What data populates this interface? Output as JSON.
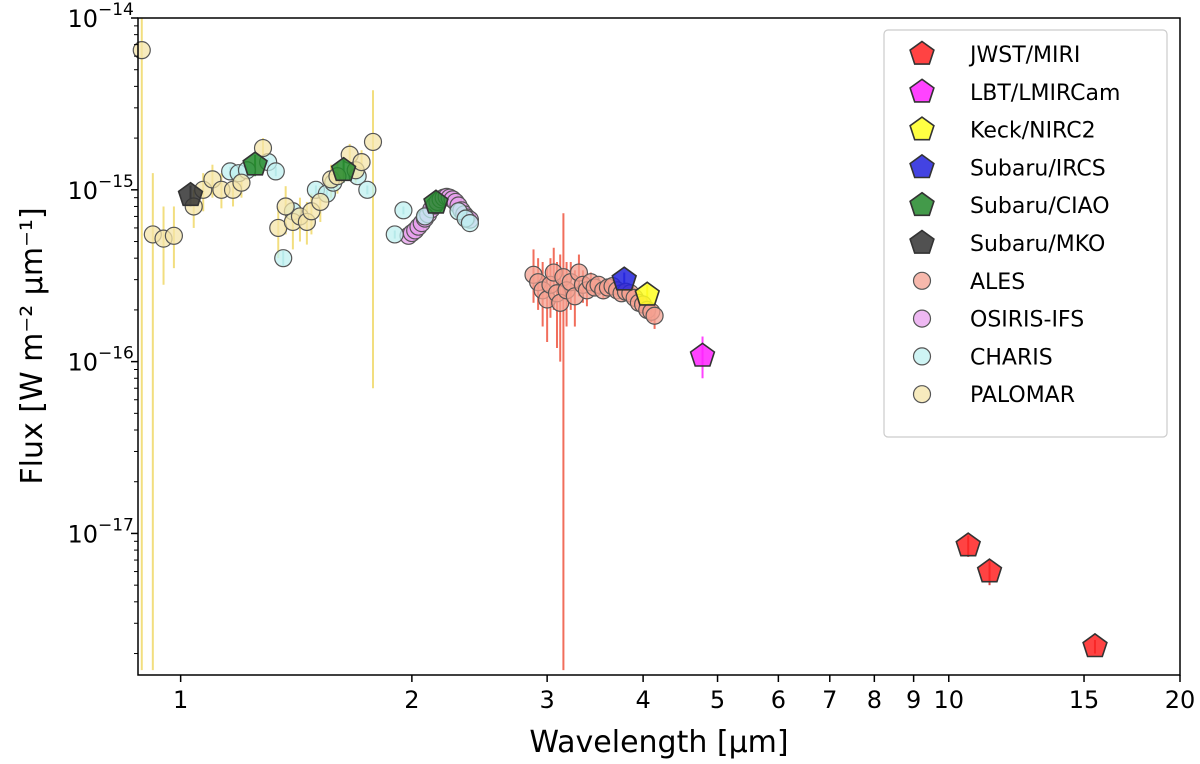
{
  "chart_data": {
    "type": "scatter",
    "xscale": "log",
    "yscale": "log",
    "xlim": [
      0.88,
      20
    ],
    "ylim": [
      1.5e-18,
      1e-14
    ],
    "xlabel": "Wavelength [μm]",
    "ylabel": "Flux [W m⁻² μm⁻¹]",
    "xticks": [
      {
        "value": 1,
        "label": "1"
      },
      {
        "value": 2,
        "label": "2"
      },
      {
        "value": 3,
        "label": "3"
      },
      {
        "value": 4,
        "label": "4"
      },
      {
        "value": 5,
        "label": "5"
      },
      {
        "value": 6,
        "label": "6"
      },
      {
        "value": 7,
        "label": "7"
      },
      {
        "value": 8,
        "label": "8"
      },
      {
        "value": 9,
        "label": "9"
      },
      {
        "value": 10,
        "label": "10"
      },
      {
        "value": 15,
        "label": "15"
      },
      {
        "value": 20,
        "label": "20"
      }
    ],
    "yticks": [
      {
        "value": 1e-17,
        "base": "10",
        "exp": "−17"
      },
      {
        "value": 1e-16,
        "base": "10",
        "exp": "−16"
      },
      {
        "value": 1e-15,
        "base": "10",
        "exp": "−15"
      },
      {
        "value": 1e-14,
        "base": "10",
        "exp": "−14"
      }
    ],
    "legend_position": "top-right",
    "series": [
      {
        "name": "JWST/MIRI",
        "marker": "pentagon",
        "color": "#ff2222",
        "ecolor": "#cc2222",
        "points": [
          [
            10.6,
            8.5e-18,
            7.3e-18,
            9.7e-18
          ],
          [
            11.3,
            6e-18,
            5e-18,
            7e-18
          ],
          [
            15.5,
            2.2e-18,
            2e-18,
            2.4e-18
          ]
        ]
      },
      {
        "name": "LBT/LMIRCam",
        "marker": "pentagon",
        "color": "#ff22ff",
        "ecolor": "#ff22ff",
        "points": [
          [
            4.78,
            1.08e-16,
            8e-17,
            1.4e-16
          ]
        ]
      },
      {
        "name": "Keck/NIRC2",
        "marker": "pentagon",
        "color": "#ffff22",
        "ecolor": "#e8d000",
        "points": [
          [
            4.05,
            2.45e-16,
            2.1e-16,
            2.8e-16
          ]
        ]
      },
      {
        "name": "Subaru/IRCS",
        "marker": "pentagon",
        "color": "#2222dd",
        "ecolor": "#2222dd",
        "points": [
          [
            3.78,
            3e-16,
            2.7e-16,
            3.3e-16
          ]
        ]
      },
      {
        "name": "Subaru/CIAO",
        "marker": "pentagon",
        "color": "#22882a",
        "ecolor": "#22882a",
        "points": [
          [
            1.25,
            1.4e-15,
            1.2e-15,
            1.6e-15
          ],
          [
            1.63,
            1.3e-15,
            1.1e-15,
            1.5e-15
          ],
          [
            2.15,
            8.4e-16,
            7.2e-16,
            9.6e-16
          ]
        ]
      },
      {
        "name": "Subaru/MKO",
        "marker": "pentagon",
        "color": "#333333",
        "ecolor": "#333333",
        "points": [
          [
            1.03,
            9.3e-16,
            8e-16,
            1.06e-15
          ]
        ]
      },
      {
        "name": "ALES",
        "marker": "circle",
        "color": "#f4a090",
        "ecolor": "#ee5540",
        "points": [
          [
            2.88,
            3.2e-16,
            2.2e-16,
            4.5e-16
          ],
          [
            2.92,
            2.9e-16,
            2e-16,
            4e-16
          ],
          [
            2.96,
            2.6e-16,
            1.6e-16,
            3.8e-16
          ],
          [
            3.0,
            2.3e-16,
            1.3e-16,
            3.5e-16
          ],
          [
            3.03,
            2.8e-16,
            1.8e-16,
            4e-16
          ],
          [
            3.06,
            3.3e-16,
            2e-16,
            4.6e-16
          ],
          [
            3.09,
            2.5e-16,
            1.2e-16,
            3.8e-16
          ],
          [
            3.12,
            2.2e-16,
            1e-16,
            4.2e-16
          ],
          [
            3.15,
            3.1e-16,
            1.6e-18,
            7.3e-16
          ],
          [
            3.18,
            2.6e-16,
            1.6e-16,
            3.8e-16
          ],
          [
            3.22,
            2.9e-16,
            2e-16,
            3.8e-16
          ],
          [
            3.26,
            2.4e-16,
            1.6e-16,
            3.4e-16
          ],
          [
            3.3,
            3.3e-16,
            2.4e-16,
            4.2e-16
          ],
          [
            3.34,
            2.8e-16,
            2.2e-16,
            3.4e-16
          ],
          [
            3.38,
            2.6e-16,
            2.1e-16,
            3.1e-16
          ],
          [
            3.42,
            2.9e-16,
            2.5e-16,
            3.3e-16
          ],
          [
            3.46,
            2.7e-16,
            2.4e-16,
            3e-16
          ],
          [
            3.5,
            2.8e-16,
            2.5e-16,
            3.1e-16
          ],
          [
            3.55,
            2.6e-16,
            2.3e-16,
            2.9e-16
          ],
          [
            3.6,
            2.7e-16,
            2.4e-16,
            3e-16
          ],
          [
            3.65,
            2.75e-16,
            2.5e-16,
            3e-16
          ],
          [
            3.7,
            2.6e-16,
            2.4e-16,
            2.8e-16
          ],
          [
            3.75,
            2.5e-16,
            2.3e-16,
            2.7e-16
          ],
          [
            3.8,
            2.55e-16,
            2.3e-16,
            2.8e-16
          ],
          [
            3.85,
            2.5e-16,
            2.3e-16,
            2.7e-16
          ],
          [
            3.9,
            2.35e-16,
            2.1e-16,
            2.6e-16
          ],
          [
            3.95,
            2.2e-16,
            2e-16,
            2.4e-16
          ],
          [
            4.0,
            2.15e-16,
            1.95e-16,
            2.35e-16
          ],
          [
            4.05,
            2e-16,
            1.8e-16,
            2.2e-16
          ],
          [
            4.1,
            1.95e-16,
            1.7e-16,
            2.2e-16
          ],
          [
            4.14,
            1.85e-16,
            1.55e-16,
            2.15e-16
          ]
        ]
      },
      {
        "name": "OSIRIS-IFS",
        "marker": "circle",
        "color": "#e8a0ee",
        "ecolor": "#cc66dd",
        "points": [
          [
            1.98,
            5.4e-16,
            5e-16,
            5.8e-16
          ],
          [
            2.0,
            5.6e-16,
            5.2e-16,
            6e-16
          ],
          [
            2.02,
            5.8e-16,
            5.4e-16,
            6.2e-16
          ],
          [
            2.04,
            6.1e-16,
            5.7e-16,
            6.5e-16
          ],
          [
            2.06,
            6.4e-16,
            6e-16,
            6.8e-16
          ],
          [
            2.08,
            6.8e-16,
            6.4e-16,
            7.2e-16
          ],
          [
            2.1,
            7.2e-16,
            6.8e-16,
            7.6e-16
          ],
          [
            2.12,
            7.7e-16,
            7.3e-16,
            8.1e-16
          ],
          [
            2.14,
            8.1e-16,
            7.7e-16,
            8.5e-16
          ],
          [
            2.16,
            8.5e-16,
            8.1e-16,
            8.9e-16
          ],
          [
            2.18,
            8.8e-16,
            8.4e-16,
            9.2e-16
          ],
          [
            2.2,
            9e-16,
            8.6e-16,
            9.4e-16
          ],
          [
            2.22,
            9.1e-16,
            8.7e-16,
            9.5e-16
          ],
          [
            2.24,
            9e-16,
            8.6e-16,
            9.4e-16
          ],
          [
            2.26,
            8.8e-16,
            8.4e-16,
            9.2e-16
          ],
          [
            2.28,
            8.5e-16,
            8.1e-16,
            8.9e-16
          ],
          [
            2.3,
            8.1e-16,
            7.7e-16,
            8.5e-16
          ],
          [
            2.32,
            7.6e-16,
            7.2e-16,
            8e-16
          ],
          [
            2.34,
            7.2e-16,
            6.8e-16,
            7.6e-16
          ],
          [
            2.36,
            6.9e-16,
            6.5e-16,
            7.3e-16
          ],
          [
            2.38,
            6.7e-16,
            6.3e-16,
            7.1e-16
          ]
        ]
      },
      {
        "name": "CHARIS",
        "marker": "circle",
        "color": "#bff0f0",
        "ecolor": "#88cccc",
        "points": [
          [
            1.16,
            1.28e-15,
            1.2e-15,
            1.36e-15
          ],
          [
            1.19,
            1.25e-15,
            1.17e-15,
            1.33e-15
          ],
          [
            1.22,
            1.3e-15,
            1.22e-15,
            1.38e-15
          ],
          [
            1.3,
            1.45e-15,
            1.37e-15,
            1.53e-15
          ],
          [
            1.33,
            1.28e-15,
            1.2e-15,
            1.36e-15
          ],
          [
            1.36,
            4e-16,
            3.6e-16,
            4.4e-16
          ],
          [
            1.4,
            7.5e-16,
            7e-16,
            8e-16
          ],
          [
            1.5,
            1e-15,
            9.4e-16,
            1.06e-15
          ],
          [
            1.55,
            9.5e-16,
            9e-16,
            1e-15
          ],
          [
            1.58,
            1.1e-15,
            1.04e-15,
            1.16e-15
          ],
          [
            1.7,
            1.2e-15,
            1.14e-15,
            1.26e-15
          ],
          [
            1.75,
            1e-15,
            9.4e-16,
            1.06e-15
          ],
          [
            1.9,
            5.5e-16,
            5.2e-16,
            5.8e-16
          ],
          [
            1.95,
            7.6e-16,
            7.2e-16,
            8e-16
          ],
          [
            2.08,
            7e-16,
            6.6e-16,
            7.4e-16
          ],
          [
            2.3,
            7.5e-16,
            7.1e-16,
            7.9e-16
          ],
          [
            2.35,
            6.8e-16,
            6.4e-16,
            7.2e-16
          ],
          [
            2.38,
            6.4e-16,
            6e-16,
            6.8e-16
          ]
        ]
      },
      {
        "name": "PALOMAR",
        "marker": "circle",
        "color": "#f4e4a8",
        "ecolor": "#f0d868",
        "points": [
          [
            0.89,
            6.5e-15,
            1.6e-18,
            1e-14
          ],
          [
            0.92,
            5.5e-16,
            1.6e-18,
            1.25e-15
          ],
          [
            0.95,
            5.2e-16,
            2.8e-16,
            8e-16
          ],
          [
            0.98,
            5.4e-16,
            3.5e-16,
            8e-16
          ],
          [
            1.04,
            8e-16,
            6e-16,
            1e-15
          ],
          [
            1.07,
            1e-15,
            7.5e-16,
            1.25e-15
          ],
          [
            1.1,
            1.15e-15,
            9e-16,
            1.4e-15
          ],
          [
            1.13,
            1e-15,
            7.8e-16,
            1.25e-15
          ],
          [
            1.17,
            1e-15,
            8e-16,
            1.25e-15
          ],
          [
            1.2,
            1.1e-15,
            9e-16,
            1.35e-15
          ],
          [
            1.28,
            1.75e-15,
            1.5e-15,
            2e-15
          ],
          [
            1.34,
            6e-16,
            4e-16,
            8e-16
          ],
          [
            1.37,
            8e-16,
            5.5e-16,
            1.05e-15
          ],
          [
            1.4,
            6.5e-16,
            4.5e-16,
            8.5e-16
          ],
          [
            1.43,
            7e-16,
            5e-16,
            9e-16
          ],
          [
            1.46,
            6.5e-16,
            4.8e-16,
            8.5e-16
          ],
          [
            1.48,
            7.5e-16,
            5.5e-16,
            9.5e-16
          ],
          [
            1.52,
            8.5e-16,
            6.5e-16,
            1.05e-15
          ],
          [
            1.57,
            1.15e-15,
            9e-16,
            1.4e-15
          ],
          [
            1.6,
            1.2e-15,
            9.5e-16,
            1.45e-15
          ],
          [
            1.66,
            1.6e-15,
            1.35e-15,
            1.85e-15
          ],
          [
            1.69,
            1.3e-15,
            1.1e-15,
            1.5e-15
          ],
          [
            1.72,
            1.45e-15,
            1.2e-15,
            1.7e-15
          ],
          [
            1.78,
            1.9e-15,
            7e-17,
            3.8e-15
          ]
        ]
      }
    ]
  }
}
